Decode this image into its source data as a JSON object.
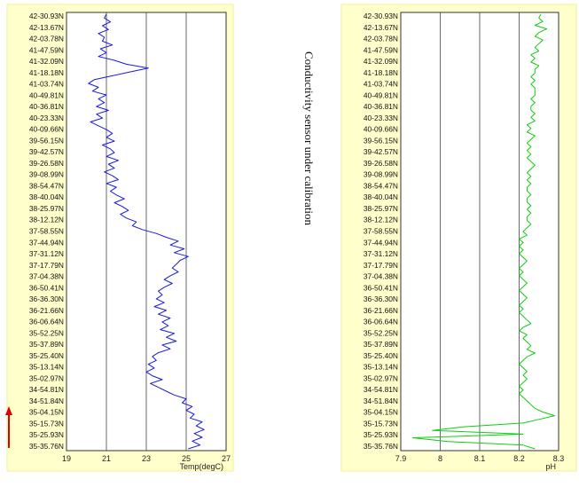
{
  "annotation": "Conductivity sensor under calibration",
  "colors": {
    "panel_bg": "#ffffcc",
    "panel_border": "#f3ef9a",
    "temp_line": "#1a1ad8",
    "ph_line": "#11cc11",
    "grid": "#444444",
    "arrow": "#e00000"
  },
  "chart_data": [
    {
      "type": "line",
      "orientation": "vertical",
      "title": "",
      "xlabel": "Temp(degC)",
      "ylabel": "",
      "xlim": [
        19,
        27
      ],
      "x_ticks": [
        "19",
        "21",
        "23",
        "25",
        "27"
      ],
      "grid": true,
      "y_ticks": [
        "42-30.93N",
        "42-13.67N",
        "42-03.78N",
        "41-47.59N",
        "41-32.09N",
        "41-18.18N",
        "41-03.74N",
        "40-49.81N",
        "40-36.81N",
        "40-23.33N",
        "40-09.66N",
        "39-56.15N",
        "39-42.57N",
        "39-26.58N",
        "39-08.99N",
        "38-54.47N",
        "38-40.04N",
        "38-25.97N",
        "38-12.12N",
        "37-58.55N",
        "37-44.94N",
        "37-31.12N",
        "37-17.79N",
        "37-04.38N",
        "36-50.41N",
        "36-36.30N",
        "36-21.66N",
        "36-06.64N",
        "35-52.25N",
        "35-37.89N",
        "35-25.40N",
        "35-13.14N",
        "35-02.97N",
        "34-54.81N",
        "34-51.84N",
        "35-04.15N",
        "35-15.73N",
        "35-25.93N",
        "35-35.76N"
      ],
      "series": [
        {
          "values": [
            21.0,
            20.9,
            21.2,
            20.8,
            21.1,
            20.6,
            20.9,
            20.8,
            21.3,
            20.7,
            21.0,
            20.6,
            21.4,
            22.0,
            23.1,
            22.2,
            21.3,
            20.4,
            20.1,
            20.6,
            20.3,
            21.0,
            20.6,
            20.9,
            20.5,
            21.1,
            20.5,
            20.8,
            20.2,
            20.6,
            21.0,
            21.3,
            21.0,
            21.4,
            20.8,
            21.2,
            21.4,
            21.0,
            21.6,
            21.1,
            21.4,
            20.9,
            21.3,
            21.6,
            21.0,
            21.5,
            21.2,
            21.5,
            21.9,
            21.4,
            21.8,
            22.1,
            21.7,
            22.0,
            22.5,
            22.3,
            22.8,
            23.5,
            24.0,
            24.6,
            24.2,
            24.9,
            24.4,
            25.1,
            24.7,
            24.5,
            24.3,
            24.6,
            24.2,
            23.9,
            24.3,
            23.9,
            23.6,
            23.8,
            23.5,
            23.9,
            23.4,
            24.0,
            23.6,
            24.2,
            23.8,
            24.1,
            23.7,
            24.4,
            24.0,
            24.5,
            23.8,
            24.2,
            23.6,
            23.3,
            23.5,
            23.1,
            23.4,
            23.0,
            23.3,
            23.8,
            23.2,
            23.6,
            24.0,
            24.4,
            25.0,
            24.8,
            25.3,
            25.0,
            25.4,
            25.2,
            25.8,
            25.5,
            25.9,
            25.4,
            25.8,
            25.3,
            25.7,
            25.1
          ],
          "color": "#1a1ad8"
        }
      ]
    },
    {
      "type": "line",
      "orientation": "vertical",
      "title": "",
      "xlabel": "pH",
      "ylabel": "",
      "xlim": [
        7.9,
        8.3
      ],
      "x_ticks": [
        "7.9",
        "8",
        "8.1",
        "8.2",
        "8.3"
      ],
      "grid": true,
      "y_ticks": [
        "42-30.93N",
        "42-13.67N",
        "42-03.78N",
        "41-47.59N",
        "41-32.09N",
        "41-18.18N",
        "41-03.74N",
        "40-49.81N",
        "40-36.81N",
        "40-23.33N",
        "40-09.66N",
        "39-56.15N",
        "39-42.57N",
        "39-26.58N",
        "39-08.99N",
        "38-54.47N",
        "38-40.04N",
        "38-25.97N",
        "38-12.12N",
        "37-58.55N",
        "37-44.94N",
        "37-31.12N",
        "37-17.79N",
        "37-04.38N",
        "36-50.41N",
        "36-36.30N",
        "36-21.66N",
        "36-06.64N",
        "35-52.25N",
        "35-37.89N",
        "35-25.40N",
        "35-13.14N",
        "35-02.97N",
        "34-54.81N",
        "34-51.84N",
        "35-04.15N",
        "35-15.73N",
        "35-25.93N",
        "35-35.76N"
      ],
      "series": [
        {
          "values": [
            8.255,
            8.25,
            8.26,
            8.24,
            8.27,
            8.25,
            8.24,
            8.26,
            8.25,
            8.24,
            8.25,
            8.23,
            8.24,
            8.23,
            8.25,
            8.24,
            8.24,
            8.23,
            8.24,
            8.23,
            8.24,
            8.24,
            8.24,
            8.23,
            8.24,
            8.23,
            8.23,
            8.24,
            8.23,
            8.24,
            8.22,
            8.23,
            8.22,
            8.24,
            8.23,
            8.22,
            8.23,
            8.22,
            8.23,
            8.22,
            8.23,
            8.24,
            8.23,
            8.22,
            8.23,
            8.22,
            8.23,
            8.22,
            8.22,
            8.23,
            8.22,
            8.22,
            8.23,
            8.22,
            8.23,
            8.22,
            8.22,
            8.23,
            8.22,
            8.21,
            8.22,
            8.2,
            8.21,
            8.2,
            8.21,
            8.2,
            8.21,
            8.22,
            8.21,
            8.2,
            8.21,
            8.2,
            8.21,
            8.22,
            8.21,
            8.2,
            8.21,
            8.22,
            8.21,
            8.2,
            8.21,
            8.2,
            8.21,
            8.22,
            8.23,
            8.21,
            8.2,
            8.22,
            8.21,
            8.22,
            8.23,
            8.22,
            8.24,
            8.22,
            8.21,
            8.2,
            8.21,
            8.22,
            8.21,
            8.22,
            8.21,
            8.2,
            8.21,
            8.2,
            8.21,
            8.22,
            8.23,
            8.24,
            8.26,
            8.29,
            8.25,
            8.21,
            8.06,
            7.98,
            8.21,
            7.93,
            8.02,
            8.21,
            8.24
          ],
          "color": "#11cc11"
        }
      ]
    }
  ]
}
